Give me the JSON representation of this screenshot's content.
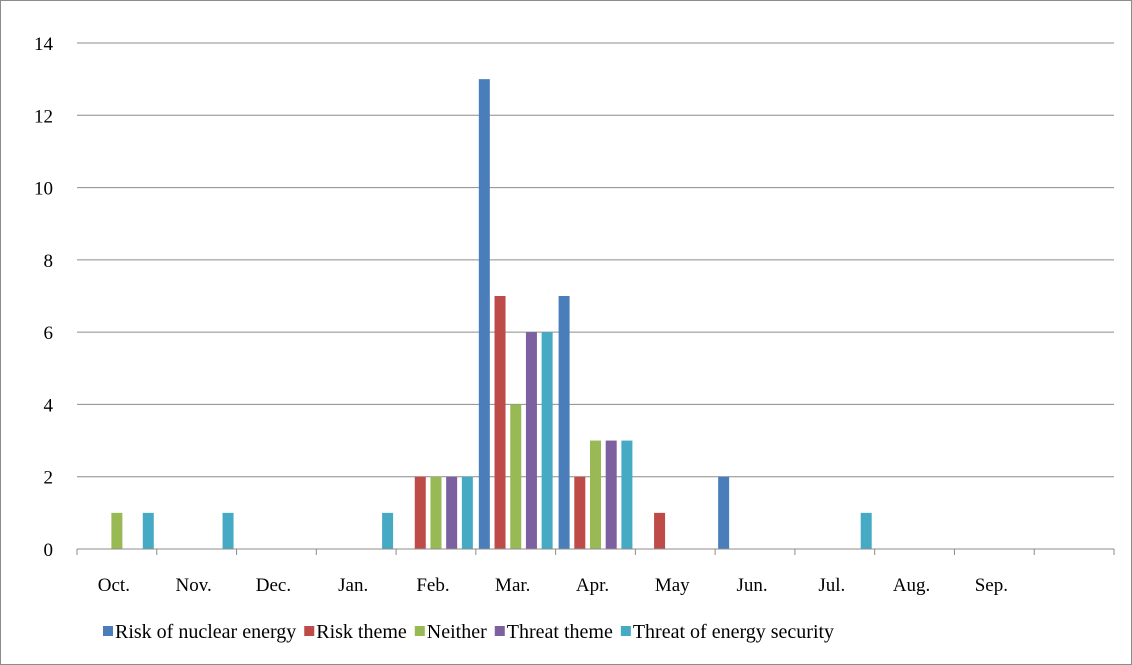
{
  "chart_data": {
    "type": "bar",
    "title": "",
    "xlabel": "",
    "ylabel": "",
    "ylim": [
      0,
      14
    ],
    "yticks": [
      "0",
      "2",
      "4",
      "6",
      "8",
      "10",
      "12",
      "14"
    ],
    "grid": true,
    "legend_position": "bottom",
    "categories": [
      "Oct.",
      "Nov.",
      "Dec.",
      "Jan.",
      "Feb.",
      "Mar.",
      "Apr.",
      "May",
      "Jun.",
      "Jul.",
      "Aug.",
      "Sep."
    ],
    "series": [
      {
        "name": "Risk of nuclear energy",
        "color": "#4a7ebb",
        "values": [
          0,
          0,
          0,
          0,
          0,
          13,
          7,
          0,
          2,
          0,
          0,
          0
        ]
      },
      {
        "name": "Risk theme",
        "color": "#be4b48",
        "values": [
          0,
          0,
          0,
          0,
          2,
          7,
          2,
          1,
          0,
          0,
          0,
          0
        ]
      },
      {
        "name": "Neither",
        "color": "#98b954",
        "values": [
          1,
          0,
          0,
          0,
          2,
          4,
          3,
          0,
          0,
          0,
          0,
          0
        ]
      },
      {
        "name": "Threat theme",
        "color": "#7d60a0",
        "values": [
          0,
          0,
          0,
          0,
          2,
          6,
          3,
          0,
          0,
          0,
          0,
          0
        ]
      },
      {
        "name": "Threat of energy security",
        "color": "#46aac5",
        "values": [
          1,
          1,
          0,
          1,
          2,
          6,
          3,
          0,
          0,
          1,
          0,
          0
        ]
      }
    ]
  }
}
